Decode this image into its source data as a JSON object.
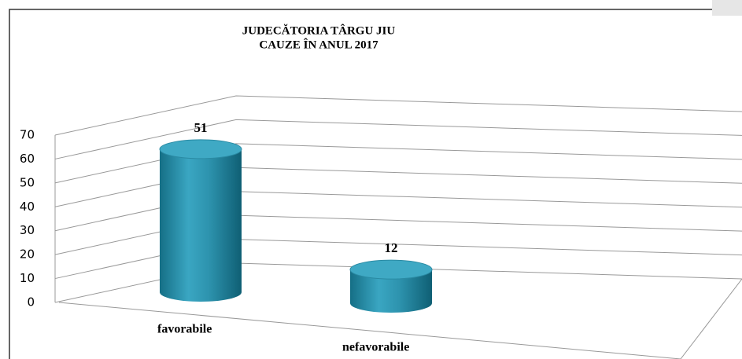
{
  "chart_data": {
    "type": "bar",
    "title": "JUDECĂTORIA TÂRGU JIU",
    "subtitle": "CAUZE ÎN ANUL 2017",
    "categories": [
      "favorabile",
      "nefavorabile"
    ],
    "values": [
      51,
      12
    ],
    "ylim": [
      0,
      70
    ],
    "yticks": [
      0,
      10,
      20,
      30,
      40,
      50,
      60,
      70
    ],
    "grid": true,
    "color": "#2a93ad"
  }
}
